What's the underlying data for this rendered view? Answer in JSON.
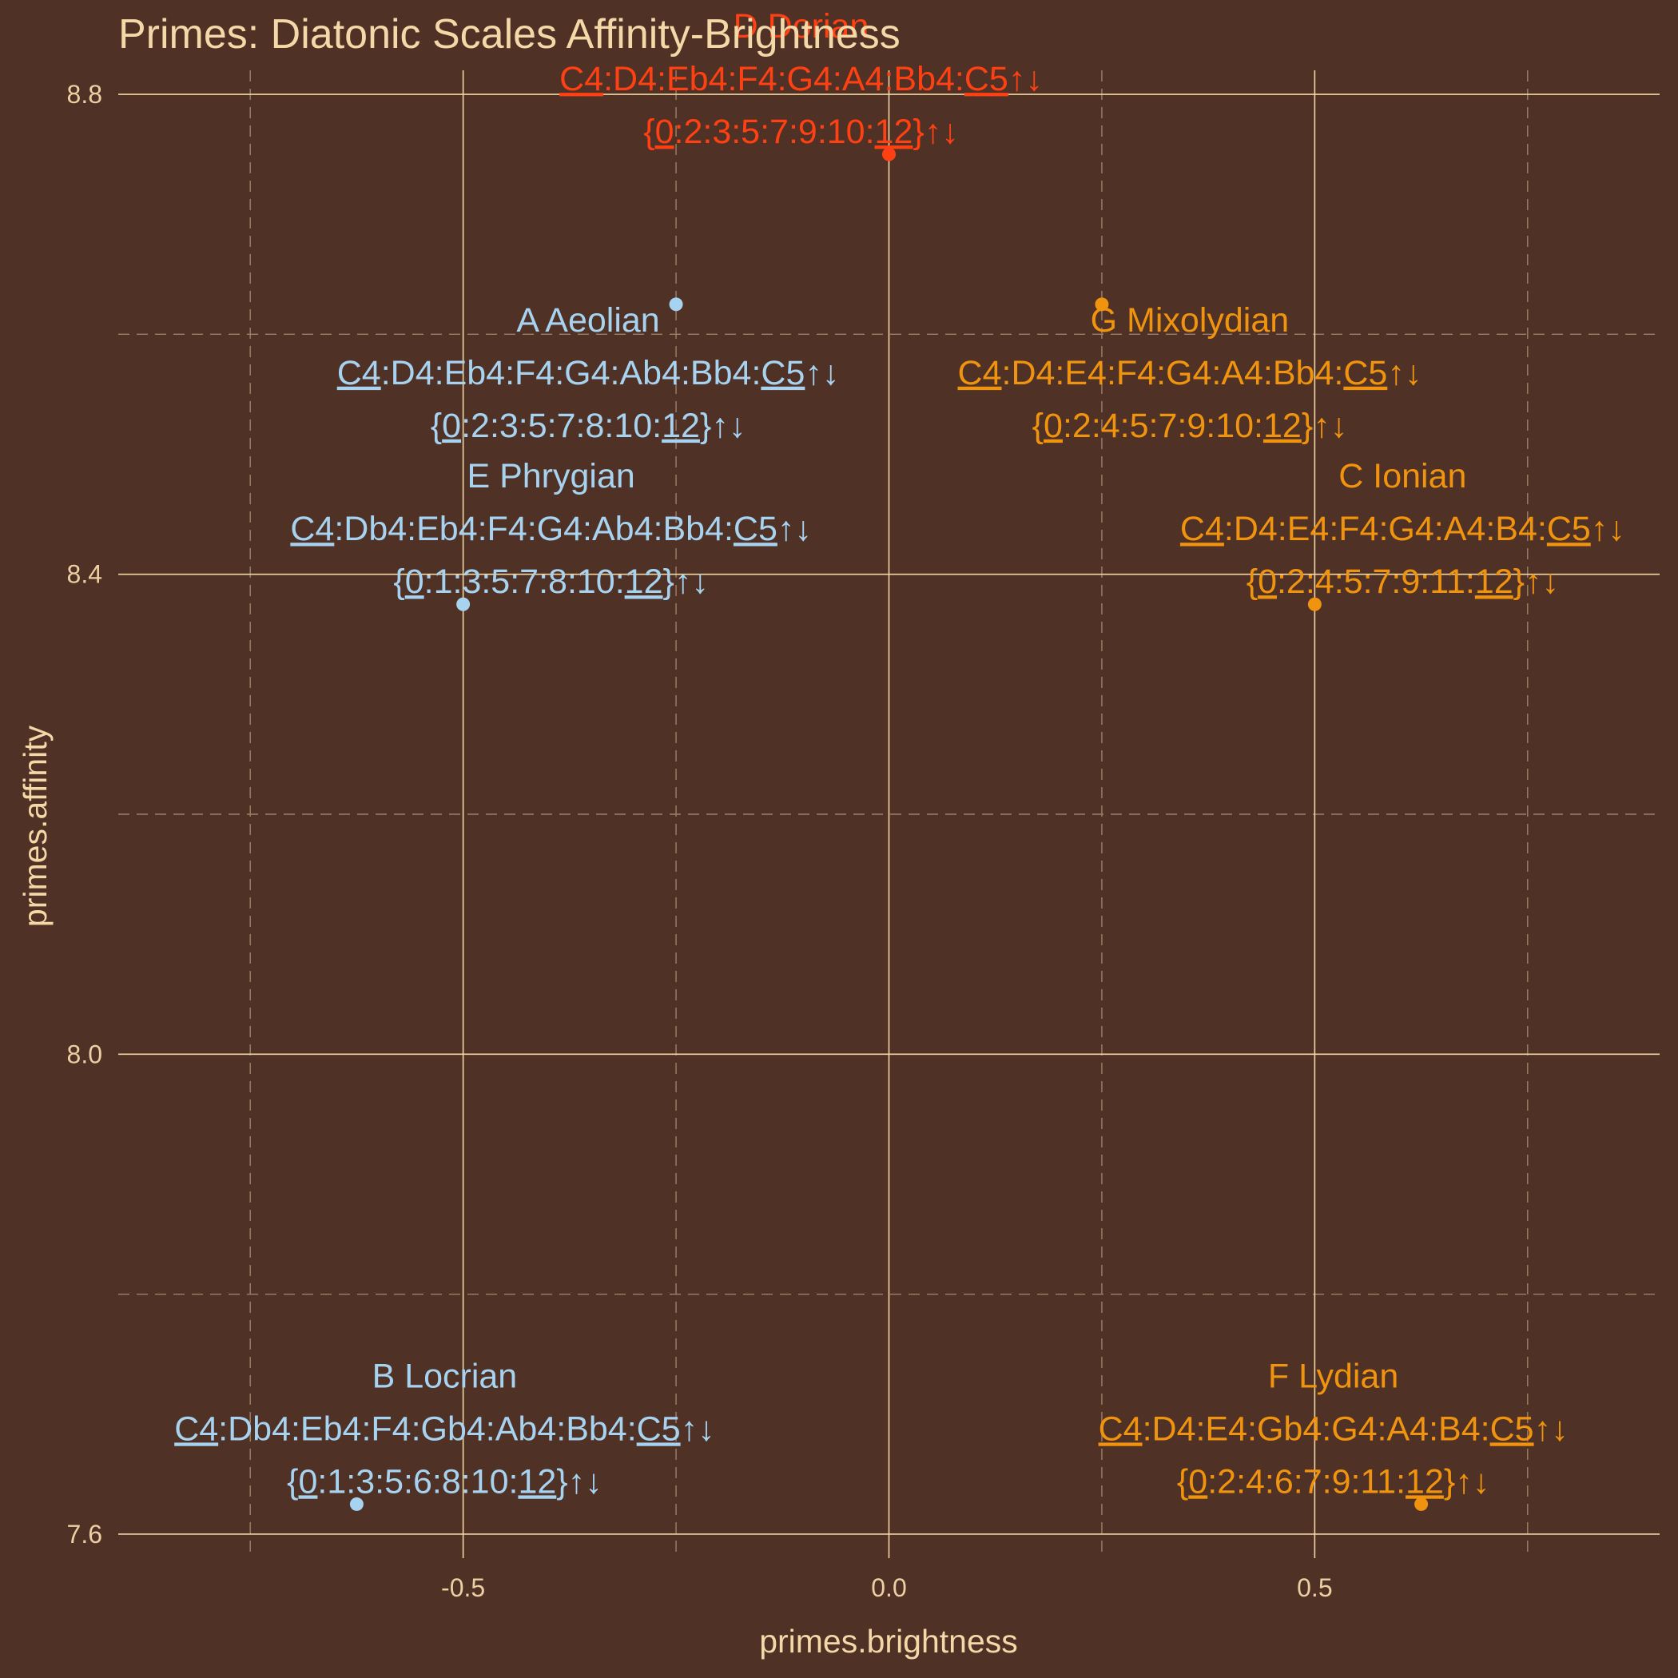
{
  "chart_data": {
    "type": "scatter",
    "title": "Primes: Diatonic Scales Affinity-Brightness",
    "xlabel": "primes.brightness",
    "ylabel": "primes.affinity",
    "xlim": [
      -0.905,
      0.905
    ],
    "ylim": [
      7.58,
      8.82
    ],
    "x_major_ticks": [
      -0.5,
      0.0,
      0.5
    ],
    "x_major_tick_labels": [
      "-0.5",
      "0.0",
      "0.5"
    ],
    "x_minor_ticks": [
      -0.75,
      -0.25,
      0.25,
      0.75
    ],
    "y_major_ticks": [
      7.6,
      8.0,
      8.4,
      8.8
    ],
    "y_major_tick_labels": [
      "7.6",
      "8.0",
      "8.4",
      "8.8"
    ],
    "y_minor_ticks": [
      7.8,
      8.2,
      8.6
    ],
    "grid": true,
    "legend": "none",
    "colors": {
      "background": "#4f3126",
      "grid_major": "#f2d7a3",
      "grid_minor": "#9c8268",
      "text": "#f3d8a8",
      "minor_mode": "#a7d3f0",
      "major_mode": "#f0940f",
      "dorian": "#ff4012"
    },
    "points": [
      {
        "name": "D Dorian",
        "x": 0.0,
        "y": 8.75,
        "color": "#ff4012",
        "notes": "C4:D4:Eb4:F4:G4:A4:Bb4:C5↑↓",
        "pcs": "{0:2:3:5:7:9:10:12}↑↓",
        "label_pos": "above-left"
      },
      {
        "name": "A Aeolian",
        "x": -0.25,
        "y": 8.625,
        "color": "#a7d3f0",
        "notes": "C4:D4:Eb4:F4:G4:Ab4:Bb4:C5↑↓",
        "pcs": "{0:2:3:5:7:8:10:12}↑↓",
        "label_pos": "below-left"
      },
      {
        "name": "G Mixolydian",
        "x": 0.25,
        "y": 8.625,
        "color": "#f0940f",
        "notes": "C4:D4:E4:F4:G4:A4:Bb4:C5↑↓",
        "pcs": "{0:2:4:5:7:9:10:12}↑↓",
        "label_pos": "below-right"
      },
      {
        "name": "E Phrygian",
        "x": -0.5,
        "y": 8.375,
        "color": "#a7d3f0",
        "notes": "C4:Db4:Eb4:F4:G4:Ab4:Bb4:C5↑↓",
        "pcs": "{0:1:3:5:7:8:10:12}↑↓",
        "label_pos": "above-right"
      },
      {
        "name": "C Ionian",
        "x": 0.5,
        "y": 8.375,
        "color": "#f0940f",
        "notes": "C4:D4:E4:F4:G4:A4:B4:C5↑↓",
        "pcs": "{0:2:4:5:7:9:11:12}↑↓",
        "label_pos": "above-right"
      },
      {
        "name": "B Locrian",
        "x": -0.625,
        "y": 7.625,
        "color": "#a7d3f0",
        "notes": "C4:Db4:Eb4:F4:Gb4:Ab4:Bb4:C5↑↓",
        "pcs": "{0:1:3:5:6:8:10:12}↑↓",
        "label_pos": "above-right"
      },
      {
        "name": "F Lydian",
        "x": 0.625,
        "y": 7.625,
        "color": "#f0940f",
        "notes": "C4:D4:E4:Gb4:G4:A4:B4:C5↑↓",
        "pcs": "{0:2:4:6:7:9:11:12}↑↓",
        "label_pos": "above-left"
      }
    ]
  }
}
